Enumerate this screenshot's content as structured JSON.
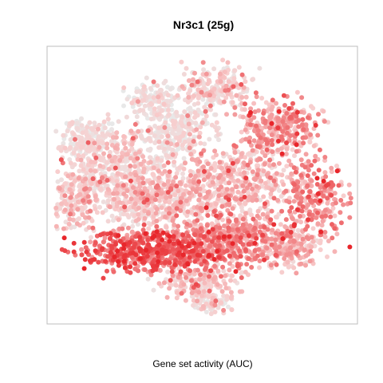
{
  "chart_data": {
    "type": "scatter",
    "title": "Nr3c1 (25g)",
    "xlabel": "Gene set activity (AUC)",
    "ylabel": "",
    "axes_visible": false,
    "grid": false,
    "legend": "none",
    "color_scale": {
      "low": "#e6e6e6",
      "mid": "#f9d2d2",
      "high": "#e8262b"
    },
    "point_count_approx": 4500,
    "description_of_regions": [
      {
        "region": "lower-left band",
        "activity": "high"
      },
      {
        "region": "right lobe",
        "activity": "medium-high"
      },
      {
        "region": "upper-left and upper-center",
        "activity": "low"
      },
      {
        "region": "rest of cloud",
        "activity": "low-medium"
      }
    ]
  }
}
